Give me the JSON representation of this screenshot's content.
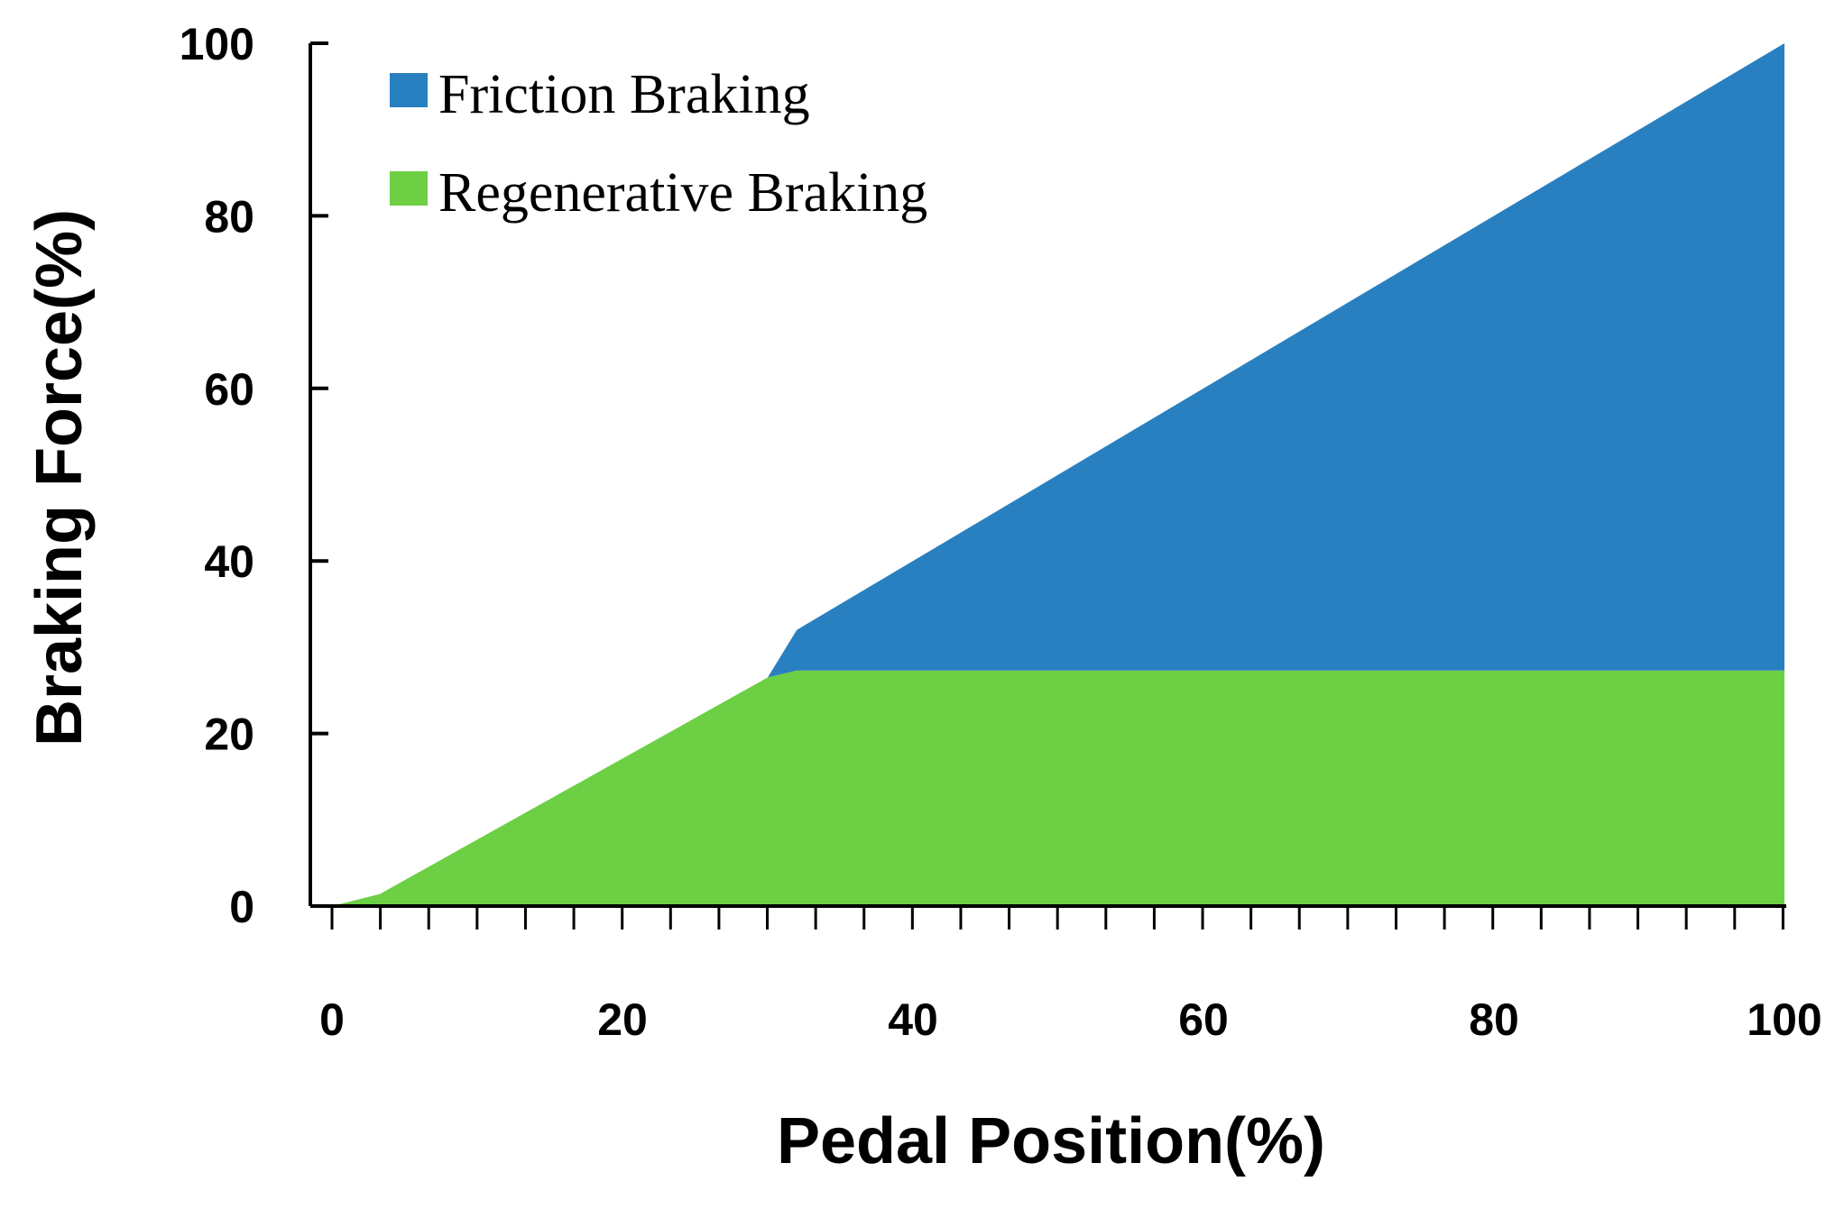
{
  "chart_data": {
    "type": "area",
    "stacked": true,
    "title": "",
    "xlabel": "Pedal Position(%)",
    "ylabel": "Braking Force(%)",
    "xlim": [
      0,
      100
    ],
    "ylim": [
      0,
      100
    ],
    "x_ticks": [
      0,
      20,
      40,
      60,
      80,
      100
    ],
    "x_tick_labels": [
      "0",
      "20",
      "40",
      "60",
      "80",
      "100"
    ],
    "x_minor_tick_step": 3.33,
    "y_ticks": [
      0,
      20,
      40,
      60,
      80,
      100
    ],
    "y_tick_labels": [
      "0",
      "20",
      "40",
      "60",
      "80",
      "100"
    ],
    "grid": false,
    "legend_position": "top-left",
    "series": [
      {
        "name": "Friction Braking",
        "color": "#2980c0",
        "x": [
          0,
          3.3,
          30,
          32,
          100
        ],
        "values": [
          0,
          0,
          0,
          4.7,
          72.7
        ]
      },
      {
        "name": "Regenerative Braking",
        "color": "#6ccf44",
        "x": [
          0,
          3.3,
          30,
          32,
          100
        ],
        "values": [
          0,
          1.4,
          26.5,
          27.3,
          27.3
        ]
      }
    ],
    "total_line": {
      "x": [
        0,
        3.3,
        30,
        32,
        100
      ],
      "values": [
        0,
        1.4,
        26.5,
        32,
        100
      ]
    }
  }
}
